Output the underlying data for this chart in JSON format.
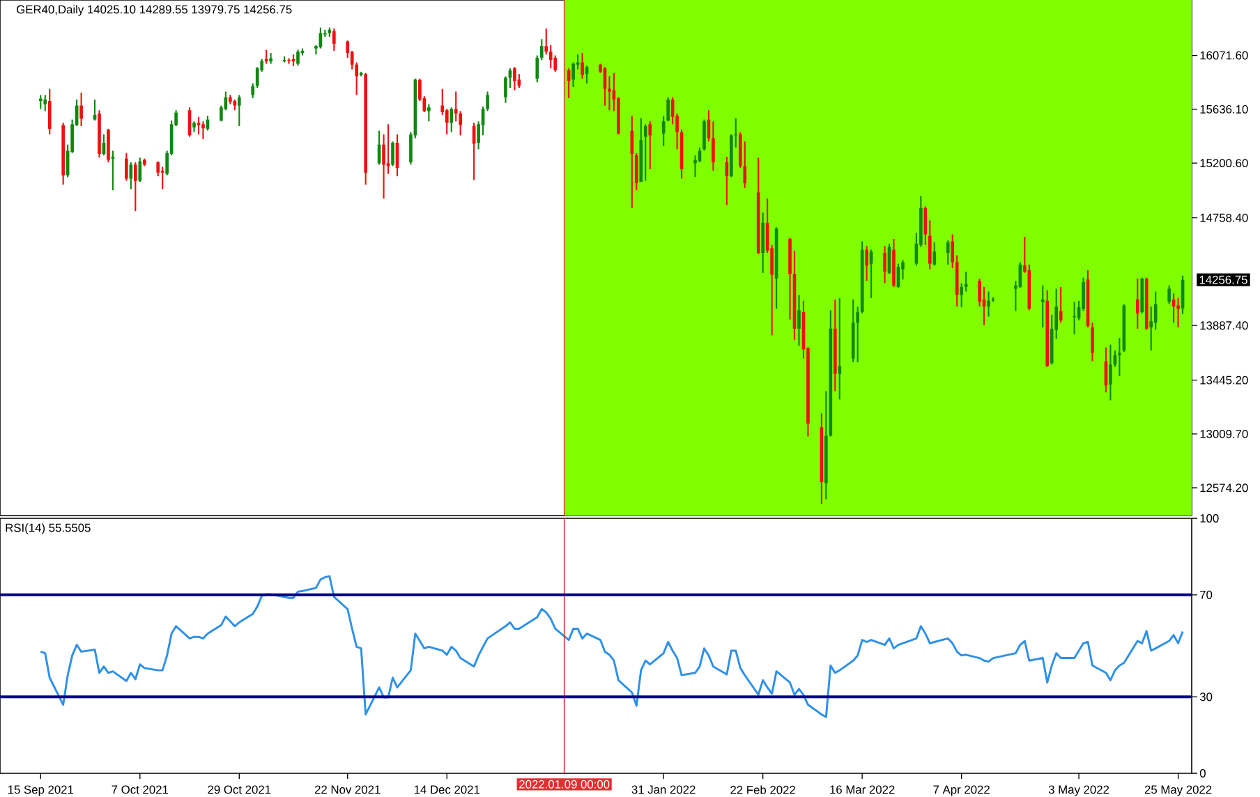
{
  "chart_data": [
    {
      "type": "candlestick",
      "title": "GER40,Daily  14025.10 14289.55 13979.75 14256.75",
      "x": [
        "2021-09-15",
        "2021-09-16",
        "2021-09-17",
        "2021-09-20",
        "2021-09-21",
        "2021-09-22",
        "2021-09-23",
        "2021-09-24",
        "2021-09-27",
        "2021-09-28",
        "2021-09-29",
        "2021-09-30",
        "2021-10-01",
        "2021-10-04",
        "2021-10-05",
        "2021-10-06",
        "2021-10-07",
        "2021-10-08",
        "2021-10-11",
        "2021-10-12",
        "2021-10-13",
        "2021-10-14",
        "2021-10-15",
        "2021-10-18",
        "2021-10-19",
        "2021-10-20",
        "2021-10-21",
        "2021-10-22",
        "2021-10-25",
        "2021-10-26",
        "2021-10-27",
        "2021-10-28",
        "2021-10-29",
        "2021-11-01",
        "2021-11-02",
        "2021-11-03",
        "2021-11-04",
        "2021-11-05",
        "2021-11-08",
        "2021-11-09",
        "2021-11-10",
        "2021-11-11",
        "2021-11-12",
        "2021-11-15",
        "2021-11-16",
        "2021-11-17",
        "2021-11-18",
        "2021-11-19",
        "2021-11-22",
        "2021-11-23",
        "2021-11-24",
        "2021-11-25",
        "2021-11-26",
        "2021-11-29",
        "2021-11-30",
        "2021-12-01",
        "2021-12-02",
        "2021-12-03",
        "2021-12-06",
        "2021-12-07",
        "2021-12-08",
        "2021-12-09",
        "2021-12-10",
        "2021-12-13",
        "2021-12-14",
        "2021-12-15",
        "2021-12-16",
        "2021-12-17",
        "2021-12-20",
        "2021-12-21",
        "2021-12-22",
        "2021-12-23",
        "2021-12-27",
        "2021-12-28",
        "2021-12-29",
        "2021-12-30",
        "2022-01-03",
        "2022-01-04",
        "2022-01-05",
        "2022-01-06",
        "2022-01-07",
        "2022-01-10",
        "2022-01-11",
        "2022-01-12",
        "2022-01-13",
        "2022-01-14",
        "2022-01-17",
        "2022-01-18",
        "2022-01-19",
        "2022-01-20",
        "2022-01-21",
        "2022-01-24",
        "2022-01-25",
        "2022-01-26",
        "2022-01-27",
        "2022-01-28",
        "2022-01-31",
        "2022-02-01",
        "2022-02-02",
        "2022-02-03",
        "2022-02-04",
        "2022-02-07",
        "2022-02-08",
        "2022-02-09",
        "2022-02-10",
        "2022-02-11",
        "2022-02-14",
        "2022-02-15",
        "2022-02-16",
        "2022-02-17",
        "2022-02-18",
        "2022-02-21",
        "2022-02-22",
        "2022-02-23",
        "2022-02-24",
        "2022-02-25",
        "2022-02-28",
        "2022-03-01",
        "2022-03-02",
        "2022-03-03",
        "2022-03-04",
        "2022-03-07",
        "2022-03-08",
        "2022-03-09",
        "2022-03-10",
        "2022-03-11",
        "2022-03-14",
        "2022-03-15",
        "2022-03-16",
        "2022-03-17",
        "2022-03-18",
        "2022-03-21",
        "2022-03-22",
        "2022-03-23",
        "2022-03-24",
        "2022-03-25",
        "2022-03-28",
        "2022-03-29",
        "2022-03-30",
        "2022-03-31",
        "2022-04-01",
        "2022-04-04",
        "2022-04-05",
        "2022-04-06",
        "2022-04-07",
        "2022-04-08",
        "2022-04-11",
        "2022-04-12",
        "2022-04-13",
        "2022-04-14",
        "2022-04-19",
        "2022-04-20",
        "2022-04-21",
        "2022-04-22",
        "2022-04-25",
        "2022-04-26",
        "2022-04-27",
        "2022-04-28",
        "2022-04-29",
        "2022-05-02",
        "2022-05-03",
        "2022-05-04",
        "2022-05-05",
        "2022-05-06",
        "2022-05-09",
        "2022-05-10",
        "2022-05-11",
        "2022-05-12",
        "2022-05-13",
        "2022-05-16",
        "2022-05-17",
        "2022-05-18",
        "2022-05-19",
        "2022-05-20",
        "2022-05-23",
        "2022-05-24",
        "2022-05-25",
        "2022-05-26"
      ],
      "ohlc": [
        [
          15703,
          15752,
          15639,
          15722
        ],
        [
          15677,
          15752,
          15621,
          15715
        ],
        [
          15703,
          15801,
          15433,
          15478
        ],
        [
          15508,
          15527,
          15027,
          15102
        ],
        [
          15102,
          15350,
          15087,
          15301
        ],
        [
          15290,
          15553,
          15282,
          15515
        ],
        [
          15508,
          15715,
          15500,
          15666
        ],
        [
          15666,
          15771,
          15500,
          15560
        ],
        [
          15553,
          15715,
          15545,
          15591
        ],
        [
          15602,
          15628,
          15245,
          15275
        ],
        [
          15275,
          15433,
          15263,
          15365
        ],
        [
          15470,
          15478,
          15207,
          15226
        ],
        [
          15237,
          15301,
          14981,
          15252
        ],
        [
          15237,
          15282,
          15057,
          15075
        ],
        [
          15075,
          15207,
          14990,
          15188
        ],
        [
          15188,
          15207,
          14812,
          15057
        ],
        [
          15057,
          15245,
          15049,
          15215
        ],
        [
          15226,
          15237,
          15177,
          15188
        ],
        [
          15207,
          15215,
          15094,
          15124
        ],
        [
          15139,
          15169,
          14990,
          15124
        ],
        [
          15113,
          15301,
          15102,
          15282
        ],
        [
          15275,
          15545,
          15263,
          15515
        ],
        [
          15508,
          15628,
          15500,
          15609
        ],
        [
          15628,
          15651,
          15414,
          15425
        ],
        [
          15489,
          15538,
          15451,
          15527
        ],
        [
          15527,
          15575,
          15433,
          15508
        ],
        [
          15515,
          15538,
          15395,
          15482
        ],
        [
          15478,
          15583,
          15463,
          15553
        ],
        [
          15545,
          15666,
          15538,
          15651
        ],
        [
          15639,
          15779,
          15628,
          15733
        ],
        [
          15733,
          15752,
          15677,
          15696
        ],
        [
          15703,
          15715,
          15628,
          15666
        ],
        [
          15666,
          15752,
          15500,
          15733
        ],
        [
          15752,
          15846,
          15726,
          15824
        ],
        [
          15827,
          15978,
          15809,
          15967
        ],
        [
          15951,
          16042,
          15940,
          16027
        ],
        [
          16042,
          16117,
          16004,
          16023
        ],
        [
          16023,
          16091,
          16004,
          16049
        ],
        [
          16023,
          16064,
          16015,
          16034
        ],
        [
          16034,
          16049,
          16004,
          16027
        ],
        [
          16042,
          16079,
          15985,
          16023
        ],
        [
          16004,
          16117,
          15989,
          16102
        ],
        [
          16091,
          16128,
          16072,
          16109
        ],
        [
          16128,
          16155,
          16079,
          16147
        ],
        [
          16139,
          16297,
          16128,
          16252
        ],
        [
          16241,
          16279,
          16222,
          16252
        ],
        [
          16252,
          16297,
          16222,
          16279
        ],
        [
          16267,
          16290,
          16109,
          16166
        ],
        [
          16185,
          16192,
          16053,
          16091
        ],
        [
          16098,
          16109,
          15959,
          15997
        ],
        [
          15997,
          16015,
          15752,
          15903
        ],
        [
          15914,
          15940,
          15903,
          15929
        ],
        [
          15921,
          15929,
          15027,
          15124
        ],
        [
          15199,
          15463,
          15188,
          15350
        ],
        [
          15350,
          15433,
          14914,
          15188
        ],
        [
          15199,
          15515,
          15113,
          15177
        ],
        [
          15188,
          15376,
          15177,
          15365
        ],
        [
          15365,
          15433,
          15094,
          15162
        ],
        [
          15207,
          15451,
          15188,
          15433
        ],
        [
          15425,
          15884,
          15402,
          15876
        ],
        [
          15873,
          15884,
          15703,
          15715
        ],
        [
          15726,
          15741,
          15613,
          15621
        ],
        [
          15621,
          15677,
          15538,
          15651
        ],
        [
          15666,
          15801,
          15591,
          15613
        ],
        [
          15628,
          15639,
          15433,
          15527
        ],
        [
          15527,
          15651,
          15451,
          15639
        ],
        [
          15639,
          15779,
          15538,
          15602
        ],
        [
          15602,
          15621,
          15425,
          15508
        ],
        [
          15500,
          15527,
          15064,
          15357
        ],
        [
          15365,
          15538,
          15312,
          15515
        ],
        [
          15508,
          15658,
          15425,
          15639
        ],
        [
          15639,
          15779,
          15621,
          15752
        ],
        [
          15733,
          15903,
          15688,
          15891
        ],
        [
          15891,
          15967,
          15809,
          15951
        ],
        [
          15967,
          15978,
          15790,
          15865
        ],
        [
          15876,
          15921,
          15809,
          15827
        ],
        [
          15884,
          16072,
          15854,
          16053
        ],
        [
          16053,
          16203,
          16034,
          16147
        ],
        [
          16147,
          16290,
          16079,
          16102
        ],
        [
          16102,
          16155,
          15967,
          16034
        ],
        [
          16053,
          16072,
          15940,
          15951
        ],
        [
          15951,
          15967,
          15726,
          15865
        ],
        [
          15876,
          16015,
          15816,
          16004
        ],
        [
          15997,
          16079,
          15959,
          16015
        ],
        [
          16015,
          16091,
          15884,
          15914
        ],
        [
          15921,
          15989,
          15846,
          15978
        ],
        [
          15997,
          16004,
          15929,
          15940
        ],
        [
          15967,
          15978,
          15666,
          15801
        ],
        [
          15801,
          15903,
          15628,
          15779
        ],
        [
          15790,
          15929,
          15621,
          15715
        ],
        [
          15726,
          15733,
          15433,
          15440
        ],
        [
          15463,
          15583,
          14839,
          15275
        ],
        [
          15263,
          15282,
          14981,
          15038
        ],
        [
          15049,
          15564,
          15049,
          15387
        ],
        [
          15414,
          15515,
          15057,
          15500
        ],
        [
          15515,
          15538,
          15151,
          15425
        ],
        [
          15440,
          15583,
          15339,
          15538
        ],
        [
          15545,
          15733,
          15538,
          15715
        ],
        [
          15715,
          15733,
          15515,
          15575
        ],
        [
          15583,
          15602,
          15312,
          15451
        ],
        [
          15451,
          15470,
          15075,
          15151
        ],
        [
          15199,
          15263,
          15087,
          15226
        ],
        [
          15215,
          15327,
          15207,
          15301
        ],
        [
          15312,
          15553,
          15301,
          15538
        ],
        [
          15553,
          15628,
          15376,
          15402
        ],
        [
          15402,
          15538,
          15139,
          15207
        ],
        [
          15207,
          15252,
          14861,
          15094
        ],
        [
          15094,
          15433,
          15087,
          15425
        ],
        [
          15425,
          15564,
          15327,
          15433
        ],
        [
          15433,
          15451,
          15162,
          15177
        ],
        [
          15177,
          15376,
          15000,
          15038
        ],
        [
          14963,
          15245,
          14463,
          14474
        ],
        [
          14474,
          14801,
          14312,
          14718
        ],
        [
          14718,
          14914,
          14474,
          14493
        ],
        [
          14512,
          14538,
          13808,
          14297
        ],
        [
          14267,
          14681,
          14023,
          14673
        ],
        [
          14587,
          14598,
          13936,
          14305
        ],
        [
          14305,
          14493,
          13771,
          13861
        ],
        [
          13861,
          14135,
          13722,
          14011
        ],
        [
          13996,
          14087,
          13620,
          13695
        ],
        [
          13703,
          13711,
          12989,
          13094
        ],
        [
          13064,
          13177,
          12443,
          12620
        ],
        [
          12613,
          13357,
          12481,
          12996
        ],
        [
          12996,
          14011,
          12989,
          13861
        ],
        [
          13861,
          14098,
          13357,
          13496
        ],
        [
          13496,
          14109,
          13289,
          13560
        ],
        [
          13620,
          14098,
          13590,
          13910
        ],
        [
          13910,
          14041,
          13590,
          13996
        ],
        [
          13996,
          14568,
          13985,
          14500
        ],
        [
          14500,
          14530,
          14248,
          14372
        ],
        [
          14387,
          14500,
          14109,
          14485
        ],
        [
          14474,
          14530,
          14229,
          14323
        ],
        [
          14312,
          14549,
          14304,
          14523
        ],
        [
          14500,
          14587,
          14199,
          14211
        ],
        [
          14199,
          14387,
          14192,
          14361
        ],
        [
          14342,
          14417,
          14259,
          14399
        ],
        [
          14387,
          14635,
          14372,
          14549
        ],
        [
          14538,
          14936,
          14523,
          14838
        ],
        [
          14838,
          14850,
          14538,
          14624
        ],
        [
          14613,
          14737,
          14342,
          14387
        ],
        [
          14380,
          14560,
          14372,
          14485
        ],
        [
          14474,
          14575,
          14380,
          14560
        ],
        [
          14568,
          14624,
          14350,
          14399
        ],
        [
          14399,
          14455,
          14041,
          14135
        ],
        [
          14135,
          14229,
          14034,
          14199
        ],
        [
          14199,
          14323,
          14162,
          14222
        ],
        [
          14248,
          14267,
          14041,
          14079
        ],
        [
          14098,
          14199,
          13891,
          14041
        ],
        [
          14041,
          14162,
          13959,
          14087
        ],
        [
          14094,
          14116,
          14079,
          14101
        ],
        [
          14184,
          14248,
          14004,
          14211
        ],
        [
          14199,
          14399,
          14192,
          14380
        ],
        [
          14372,
          14605,
          14312,
          14323
        ],
        [
          14335,
          14380,
          14011,
          14023
        ],
        [
          14079,
          14211,
          13872,
          14098
        ],
        [
          14087,
          14173,
          13552,
          13560
        ],
        [
          13582,
          13974,
          13571,
          13861
        ],
        [
          13853,
          14184,
          13778,
          14041
        ],
        [
          14004,
          14199,
          13910,
          13929
        ],
        [
          13955,
          14079,
          13816,
          13962
        ],
        [
          13947,
          14087,
          13929,
          14034
        ],
        [
          14023,
          14274,
          14004,
          14237
        ],
        [
          14259,
          14335,
          13872,
          13883
        ],
        [
          13872,
          13910,
          13598,
          13665
        ],
        [
          13598,
          13710,
          13346,
          13402
        ],
        [
          13410,
          13733,
          13282,
          13571
        ],
        [
          13571,
          13684,
          13552,
          13647
        ],
        [
          13647,
          13786,
          13477,
          13665
        ],
        [
          13684,
          14060,
          13673,
          14049
        ],
        [
          14098,
          14267,
          13861,
          13985
        ],
        [
          13996,
          14274,
          13985,
          14267
        ],
        [
          14267,
          14274,
          13853,
          13861
        ],
        [
          13872,
          14041,
          13684,
          13921
        ],
        [
          13910,
          14162,
          13853,
          14060
        ],
        [
          14079,
          14211,
          14060,
          14184
        ],
        [
          14098,
          14146,
          13910,
          14041
        ],
        [
          14049,
          14109,
          13872,
          14023
        ],
        [
          14025.1,
          14289.55,
          13979.75,
          14256.75
        ]
      ],
      "colors": [
        "#108810",
        "#108810",
        "#f01010",
        "#f01010",
        "#108810",
        "#108810",
        "#108810",
        "#f01010",
        "#108810",
        "#f01010",
        "#108810",
        "#f01010",
        "#108810",
        "#f01010",
        "#108810",
        "#f01010",
        "#108810",
        "#f01010",
        "#f01010",
        "#f01010",
        "#108810",
        "#108810",
        "#108810",
        "#f01010",
        "#108810",
        "#f01010",
        "#f01010",
        "#108810",
        "#108810",
        "#108810",
        "#f01010",
        "#f01010",
        "#108810",
        "#108810",
        "#108810",
        "#108810",
        "#f01010",
        "#108810",
        "#108810",
        "#f01010",
        "#f01010",
        "#108810",
        "#108810",
        "#108810",
        "#108810",
        "#108810",
        "#108810",
        "#f01010",
        "#f01010",
        "#f01010",
        "#f01010",
        "#108810",
        "#f01010",
        "#108810",
        "#f01010",
        "#f01010",
        "#108810",
        "#f01010",
        "#108810",
        "#108810",
        "#f01010",
        "#f01010",
        "#108810",
        "#f01010",
        "#f01010",
        "#108810",
        "#f01010",
        "#f01010",
        "#f01010",
        "#108810",
        "#108810",
        "#108810",
        "#108810",
        "#108810",
        "#f01010",
        "#f01010",
        "#108810",
        "#108810",
        "#f01010",
        "#f01010",
        "#f01010",
        "#f01010",
        "#108810",
        "#108810",
        "#f01010",
        "#108810",
        "#f01010",
        "#f01010",
        "#f01010",
        "#f01010",
        "#f01010",
        "#f01010",
        "#f01010",
        "#108810",
        "#108810",
        "#f01010",
        "#108810",
        "#108810",
        "#f01010",
        "#f01010",
        "#f01010",
        "#108810",
        "#108810",
        "#108810",
        "#f01010",
        "#f01010",
        "#f01010",
        "#108810",
        "#108810",
        "#f01010",
        "#f01010",
        "#f01010",
        "#108810",
        "#f01010",
        "#f01010",
        "#108810",
        "#f01010",
        "#f01010",
        "#108810",
        "#f01010",
        "#f01010",
        "#f01010",
        "#108810",
        "#108810",
        "#f01010",
        "#108810",
        "#108810",
        "#108810",
        "#108810",
        "#f01010",
        "#108810",
        "#f01010",
        "#108810",
        "#f01010",
        "#108810",
        "#108810",
        "#108810",
        "#108810",
        "#f01010",
        "#f01010",
        "#108810",
        "#108810",
        "#f01010",
        "#f01010",
        "#108810",
        "#108810",
        "#f01010",
        "#f01010",
        "#108810",
        "#108810",
        "#108810",
        "#108810",
        "#f01010",
        "#f01010",
        "#108810",
        "#f01010",
        "#108810",
        "#108810",
        "#f01010",
        "#108810",
        "#108810",
        "#108810",
        "#f01010",
        "#f01010",
        "#f01010",
        "#108810",
        "#108810",
        "#108810",
        "#108810",
        "#f01010",
        "#108810",
        "#f01010",
        "#108810",
        "#108810",
        "#108810",
        "#f01010",
        "#f01010",
        "#108810"
      ],
      "xlim": [
        "2021-09-06",
        "2022-05-28"
      ],
      "ylim": [
        12350,
        16520
      ],
      "yticks": [
        {
          "value": 12574.2,
          "label": "12574.20"
        },
        {
          "value": 13009.7,
          "label": "13009.70"
        },
        {
          "value": 13445.2,
          "label": "13445.20"
        },
        {
          "value": 13887.4,
          "label": "13887.40"
        },
        {
          "value": 14758.4,
          "label": "14758.40"
        },
        {
          "value": 15200.6,
          "label": "15200.60"
        },
        {
          "value": 15636.1,
          "label": "15636.10"
        },
        {
          "value": 16071.6,
          "label": "16071.60"
        }
      ],
      "tick_labels": "y",
      "bands": [
        {
          "axis": "x",
          "from": "2022-01-09",
          "to": "2022-05-28",
          "color": "#80ff00"
        }
      ],
      "ref_lines": [
        {
          "axis": "x",
          "value": "2022-01-09",
          "color": "#e04040"
        }
      ],
      "annotations": [
        "14256.75"
      ]
    },
    {
      "type": "line",
      "title": "RSI(14) 55.5505",
      "x": [
        "2021-09-15",
        "2021-09-16",
        "2021-09-17",
        "2021-09-20",
        "2021-09-21",
        "2021-09-22",
        "2021-09-23",
        "2021-09-24",
        "2021-09-27",
        "2021-09-28",
        "2021-09-29",
        "2021-09-30",
        "2021-10-01",
        "2021-10-04",
        "2021-10-05",
        "2021-10-06",
        "2021-10-07",
        "2021-10-08",
        "2021-10-11",
        "2021-10-12",
        "2021-10-13",
        "2021-10-14",
        "2021-10-15",
        "2021-10-18",
        "2021-10-19",
        "2021-10-20",
        "2021-10-21",
        "2021-10-22",
        "2021-10-25",
        "2021-10-26",
        "2021-10-27",
        "2021-10-28",
        "2021-10-29",
        "2021-11-01",
        "2021-11-02",
        "2021-11-03",
        "2021-11-04",
        "2021-11-05",
        "2021-11-08",
        "2021-11-09",
        "2021-11-10",
        "2021-11-11",
        "2021-11-12",
        "2021-11-15",
        "2021-11-16",
        "2021-11-17",
        "2021-11-18",
        "2021-11-19",
        "2021-11-22",
        "2021-11-23",
        "2021-11-24",
        "2021-11-25",
        "2021-11-26",
        "2021-11-29",
        "2021-11-30",
        "2021-12-01",
        "2021-12-02",
        "2021-12-03",
        "2021-12-06",
        "2021-12-07",
        "2021-12-08",
        "2021-12-09",
        "2021-12-10",
        "2021-12-13",
        "2021-12-14",
        "2021-12-15",
        "2021-12-16",
        "2021-12-17",
        "2021-12-20",
        "2021-12-21",
        "2021-12-22",
        "2021-12-23",
        "2021-12-27",
        "2021-12-28",
        "2021-12-29",
        "2021-12-30",
        "2022-01-03",
        "2022-01-04",
        "2022-01-05",
        "2022-01-06",
        "2022-01-07",
        "2022-01-10",
        "2022-01-11",
        "2022-01-12",
        "2022-01-13",
        "2022-01-14",
        "2022-01-17",
        "2022-01-18",
        "2022-01-19",
        "2022-01-20",
        "2022-01-21",
        "2022-01-24",
        "2022-01-25",
        "2022-01-26",
        "2022-01-27",
        "2022-01-28",
        "2022-01-31",
        "2022-02-01",
        "2022-02-02",
        "2022-02-03",
        "2022-02-04",
        "2022-02-07",
        "2022-02-08",
        "2022-02-09",
        "2022-02-10",
        "2022-02-11",
        "2022-02-14",
        "2022-02-15",
        "2022-02-16",
        "2022-02-17",
        "2022-02-18",
        "2022-02-21",
        "2022-02-22",
        "2022-02-23",
        "2022-02-24",
        "2022-02-25",
        "2022-02-28",
        "2022-03-01",
        "2022-03-02",
        "2022-03-03",
        "2022-03-04",
        "2022-03-07",
        "2022-03-08",
        "2022-03-09",
        "2022-03-10",
        "2022-03-11",
        "2022-03-14",
        "2022-03-15",
        "2022-03-16",
        "2022-03-17",
        "2022-03-18",
        "2022-03-21",
        "2022-03-22",
        "2022-03-23",
        "2022-03-24",
        "2022-03-25",
        "2022-03-28",
        "2022-03-29",
        "2022-03-30",
        "2022-03-31",
        "2022-04-01",
        "2022-04-04",
        "2022-04-05",
        "2022-04-06",
        "2022-04-07",
        "2022-04-08",
        "2022-04-11",
        "2022-04-12",
        "2022-04-13",
        "2022-04-14",
        "2022-04-19",
        "2022-04-20",
        "2022-04-21",
        "2022-04-22",
        "2022-04-25",
        "2022-04-26",
        "2022-04-27",
        "2022-04-28",
        "2022-04-29",
        "2022-05-02",
        "2022-05-03",
        "2022-05-04",
        "2022-05-05",
        "2022-05-06",
        "2022-05-09",
        "2022-05-10",
        "2022-05-11",
        "2022-05-12",
        "2022-05-13",
        "2022-05-16",
        "2022-05-17",
        "2022-05-18",
        "2022-05-19",
        "2022-05-20",
        "2022-05-23",
        "2022-05-24",
        "2022-05-25",
        "2022-05-26"
      ],
      "series": [
        {
          "color": "#2e90e8",
          "values": [
            47.7,
            47.1,
            37.5,
            26.9,
            38.5,
            46.2,
            50.4,
            47.7,
            48.5,
            39.4,
            41.9,
            39.4,
            40,
            36.2,
            39.4,
            36.9,
            42.7,
            41.3,
            40.4,
            40.4,
            46.2,
            54.8,
            57.7,
            52.9,
            53.5,
            53.5,
            52.9,
            54.8,
            58.1,
            61.5,
            59.6,
            57.7,
            59.2,
            62.5,
            65.4,
            69.6,
            70.2,
            70.2,
            69.2,
            68.8,
            68.8,
            71.2,
            71.5,
            72.7,
            76,
            76.9,
            77.3,
            69.2,
            64.4,
            56.7,
            49.6,
            49,
            23.1,
            33.7,
            29.8,
            29.8,
            37.5,
            33.7,
            40.4,
            54.8,
            51.9,
            49,
            49.6,
            48.1,
            46.5,
            49.6,
            48.1,
            45.2,
            41.9,
            46.2,
            49.6,
            52.9,
            57.7,
            59.2,
            56.7,
            56.7,
            61.2,
            64.4,
            63.1,
            60.6,
            56.7,
            52.3,
            56.7,
            56.7,
            52.9,
            54.8,
            52.3,
            47.7,
            46.5,
            44.2,
            36.5,
            31.7,
            26.5,
            40.4,
            44.2,
            42.7,
            47.1,
            51.5,
            48.1,
            45.2,
            38.5,
            39.4,
            41.9,
            49,
            46.2,
            41.9,
            38.8,
            48.1,
            48.1,
            41.3,
            38.5,
            30.8,
            36.5,
            33.7,
            31.2,
            40,
            35.6,
            30.8,
            33.1,
            30.8,
            26.9,
            23.1,
            22.1,
            42.3,
            39.4,
            40.4,
            44.2,
            46.2,
            52.3,
            51.5,
            52.3,
            50.4,
            52.9,
            49,
            50.4,
            51,
            52.9,
            57.7,
            54.8,
            51,
            51.5,
            52.9,
            51,
            47.7,
            46.2,
            46.5,
            45.2,
            44.2,
            43.8,
            45.2,
            47.1,
            50.4,
            51.9,
            44.2,
            45.2,
            35.6,
            42.3,
            47.1,
            45.2,
            45.2,
            48.1,
            51,
            51.5,
            42.3,
            39.4,
            36.5,
            40.4,
            42.3,
            43.3,
            51.9,
            51,
            55.8,
            48.1,
            49,
            51.9,
            54.2,
            51,
            55.6
          ]
        }
      ],
      "xlim": [
        "2021-09-06",
        "2022-05-28"
      ],
      "xticks": [
        {
          "value": "2021-09-15",
          "label": "15 Sep 2021"
        },
        {
          "value": "2021-10-07",
          "label": "7 Oct 2021"
        },
        {
          "value": "2021-10-29",
          "label": "29 Oct 2021"
        },
        {
          "value": "2021-11-22",
          "label": "22 Nov 2021"
        },
        {
          "value": "2021-12-14",
          "label": "14 Dec 2021"
        },
        {
          "value": "2022-01-31",
          "label": "31 Jan 2022"
        },
        {
          "value": "2022-02-22",
          "label": "22 Feb 2022"
        },
        {
          "value": "2022-03-16",
          "label": "16 Mar 2022"
        },
        {
          "value": "2022-04-07",
          "label": "7 Apr 2022"
        },
        {
          "value": "2022-05-03",
          "label": "3 May 2022"
        },
        {
          "value": "2022-05-25",
          "label": "25 May 2022"
        }
      ],
      "ylim": [
        0,
        100
      ],
      "yticks": [
        0,
        30,
        70,
        100
      ],
      "ref_lines": [
        {
          "axis": "x",
          "value": "2022-01-09",
          "label": "2022.01.09 00:00",
          "color": "#e03030"
        },
        {
          "axis": "y",
          "value": 70,
          "color": "#000080"
        },
        {
          "axis": "y",
          "value": 30,
          "color": "#000080"
        }
      ]
    }
  ]
}
